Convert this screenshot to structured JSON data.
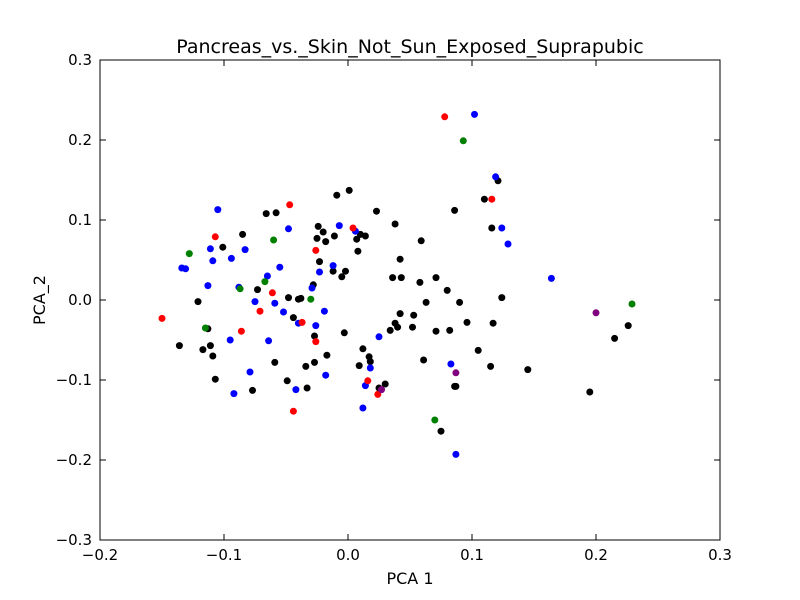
{
  "chart_data": {
    "type": "scatter",
    "title": "Pancreas_vs._Skin_Not_Sun_Exposed_Suprapubic",
    "xlabel": "PCA 1",
    "ylabel": "PCA_2",
    "xlim": [
      -0.2,
      0.3
    ],
    "ylim": [
      -0.3,
      0.3
    ],
    "xticks": [
      -0.2,
      -0.1,
      0.0,
      0.1,
      0.2,
      0.3
    ],
    "yticks": [
      -0.3,
      -0.2,
      -0.1,
      0.0,
      0.1,
      0.2,
      0.3
    ],
    "xtick_labels": [
      "−0.2",
      "−0.1",
      "0.0",
      "0.1",
      "0.2",
      "0.3"
    ],
    "ytick_labels": [
      "−0.3",
      "−0.2",
      "−0.1",
      "0.0",
      "0.1",
      "0.2",
      "0.3"
    ],
    "grid": false,
    "legend": false,
    "colors": {
      "black": "#000000",
      "blue": "#0000ff",
      "red": "#ff0000",
      "green": "#008000",
      "purple": "#800080"
    },
    "series": [
      {
        "color": "black",
        "points": [
          [
            -0.136,
            -0.057
          ],
          [
            -0.121,
            -0.002
          ],
          [
            -0.117,
            -0.062
          ],
          [
            -0.113,
            -0.036
          ],
          [
            -0.111,
            -0.057
          ],
          [
            -0.109,
            -0.07
          ],
          [
            -0.107,
            -0.099
          ],
          [
            -0.101,
            0.066
          ],
          [
            -0.085,
            0.082
          ],
          [
            -0.077,
            -0.113
          ],
          [
            -0.073,
            0.013
          ],
          [
            -0.066,
            0.108
          ],
          [
            -0.058,
            0.109
          ],
          [
            -0.059,
            -0.078
          ],
          [
            -0.049,
            -0.101
          ],
          [
            -0.048,
            0.003
          ],
          [
            -0.044,
            -0.022
          ],
          [
            -0.04,
            0.001
          ],
          [
            -0.038,
            0.002
          ],
          [
            -0.034,
            -0.083
          ],
          [
            -0.033,
            -0.11
          ],
          [
            -0.028,
            0.019
          ],
          [
            -0.027,
            -0.045
          ],
          [
            -0.027,
            -0.078
          ],
          [
            -0.025,
            0.077
          ],
          [
            -0.024,
            0.092
          ],
          [
            -0.023,
            0.048
          ],
          [
            -0.02,
            0.085
          ],
          [
            -0.018,
            0.073
          ],
          [
            -0.017,
            -0.069
          ],
          [
            -0.012,
            0.036
          ],
          [
            -0.011,
            0.08
          ],
          [
            -0.009,
            0.131
          ],
          [
            -0.005,
            0.029
          ],
          [
            -0.003,
            -0.041
          ],
          [
            -0.002,
            0.036
          ],
          [
            0.001,
            0.137
          ],
          [
            0.007,
            0.076
          ],
          [
            0.008,
            0.061
          ],
          [
            0.009,
            -0.082
          ],
          [
            0.01,
            0.082
          ],
          [
            0.012,
            -0.061
          ],
          [
            0.014,
            0.08
          ],
          [
            0.017,
            -0.071
          ],
          [
            0.018,
            -0.077
          ],
          [
            0.023,
            0.111
          ],
          [
            0.025,
            -0.11
          ],
          [
            0.03,
            -0.105
          ],
          [
            0.034,
            -0.038
          ],
          [
            0.036,
            0.028
          ],
          [
            0.038,
            -0.029
          ],
          [
            0.038,
            0.095
          ],
          [
            0.04,
            -0.034
          ],
          [
            0.042,
            -0.017
          ],
          [
            0.042,
            0.051
          ],
          [
            0.043,
            0.028
          ],
          [
            0.052,
            -0.034
          ],
          [
            0.053,
            -0.019
          ],
          [
            0.058,
            0.022
          ],
          [
            0.059,
            0.074
          ],
          [
            0.061,
            -0.075
          ],
          [
            0.063,
            -0.003
          ],
          [
            0.071,
            0.028
          ],
          [
            0.071,
            -0.039
          ],
          [
            0.075,
            -0.164
          ],
          [
            0.08,
            0.012
          ],
          [
            0.082,
            -0.038
          ],
          [
            0.086,
            0.112
          ],
          [
            0.086,
            -0.108
          ],
          [
            0.087,
            -0.108
          ],
          [
            0.09,
            -0.003
          ],
          [
            0.096,
            -0.028
          ],
          [
            0.105,
            -0.063
          ],
          [
            0.11,
            0.126
          ],
          [
            0.115,
            -0.083
          ],
          [
            0.116,
            0.09
          ],
          [
            0.117,
            -0.029
          ],
          [
            0.121,
            0.149
          ],
          [
            0.124,
            0.003
          ],
          [
            0.145,
            -0.087
          ],
          [
            0.195,
            -0.115
          ],
          [
            0.215,
            -0.048
          ],
          [
            0.226,
            -0.032
          ]
        ]
      },
      {
        "color": "blue",
        "points": [
          [
            -0.134,
            0.04
          ],
          [
            -0.131,
            0.039
          ],
          [
            -0.113,
            0.018
          ],
          [
            -0.111,
            0.064
          ],
          [
            -0.109,
            0.049
          ],
          [
            -0.105,
            0.113
          ],
          [
            -0.095,
            -0.05
          ],
          [
            -0.094,
            0.052
          ],
          [
            -0.092,
            -0.117
          ],
          [
            -0.088,
            0.016
          ],
          [
            -0.083,
            0.063
          ],
          [
            -0.079,
            -0.09
          ],
          [
            -0.075,
            -0.002
          ],
          [
            -0.065,
            0.03
          ],
          [
            -0.064,
            -0.051
          ],
          [
            -0.059,
            -0.004
          ],
          [
            -0.055,
            0.041
          ],
          [
            -0.052,
            -0.015
          ],
          [
            -0.048,
            0.089
          ],
          [
            -0.042,
            -0.112
          ],
          [
            -0.04,
            -0.029
          ],
          [
            -0.029,
            0.015
          ],
          [
            -0.026,
            -0.032
          ],
          [
            -0.023,
            0.035
          ],
          [
            -0.019,
            -0.014
          ],
          [
            -0.018,
            -0.094
          ],
          [
            -0.012,
            0.043
          ],
          [
            -0.007,
            0.093
          ],
          [
            0.006,
            0.086
          ],
          [
            0.012,
            -0.135
          ],
          [
            0.014,
            -0.107
          ],
          [
            0.018,
            -0.085
          ],
          [
            0.025,
            -0.046
          ],
          [
            0.083,
            -0.08
          ],
          [
            0.087,
            -0.193
          ],
          [
            0.102,
            0.232
          ],
          [
            0.119,
            0.154
          ],
          [
            0.124,
            0.09
          ],
          [
            0.129,
            0.07
          ],
          [
            0.164,
            0.027
          ]
        ]
      },
      {
        "color": "red",
        "points": [
          [
            -0.15,
            -0.023
          ],
          [
            -0.107,
            0.079
          ],
          [
            -0.086,
            -0.039
          ],
          [
            -0.071,
            -0.014
          ],
          [
            -0.061,
            0.009
          ],
          [
            -0.047,
            0.119
          ],
          [
            -0.044,
            -0.139
          ],
          [
            -0.037,
            -0.028
          ],
          [
            -0.026,
            -0.052
          ],
          [
            -0.026,
            0.062
          ],
          [
            0.004,
            0.09
          ],
          [
            0.016,
            -0.101
          ],
          [
            0.024,
            -0.118
          ],
          [
            0.078,
            0.229
          ],
          [
            0.116,
            0.126
          ]
        ]
      },
      {
        "color": "green",
        "points": [
          [
            -0.128,
            0.058
          ],
          [
            -0.115,
            -0.035
          ],
          [
            -0.087,
            0.014
          ],
          [
            -0.067,
            0.023
          ],
          [
            -0.06,
            0.075
          ],
          [
            -0.03,
            0.001
          ],
          [
            0.07,
            -0.15
          ],
          [
            0.093,
            0.199
          ],
          [
            0.229,
            -0.005
          ]
        ]
      },
      {
        "color": "purple",
        "points": [
          [
            0.027,
            -0.112
          ],
          [
            0.087,
            -0.091
          ],
          [
            0.2,
            -0.016
          ]
        ]
      }
    ]
  }
}
